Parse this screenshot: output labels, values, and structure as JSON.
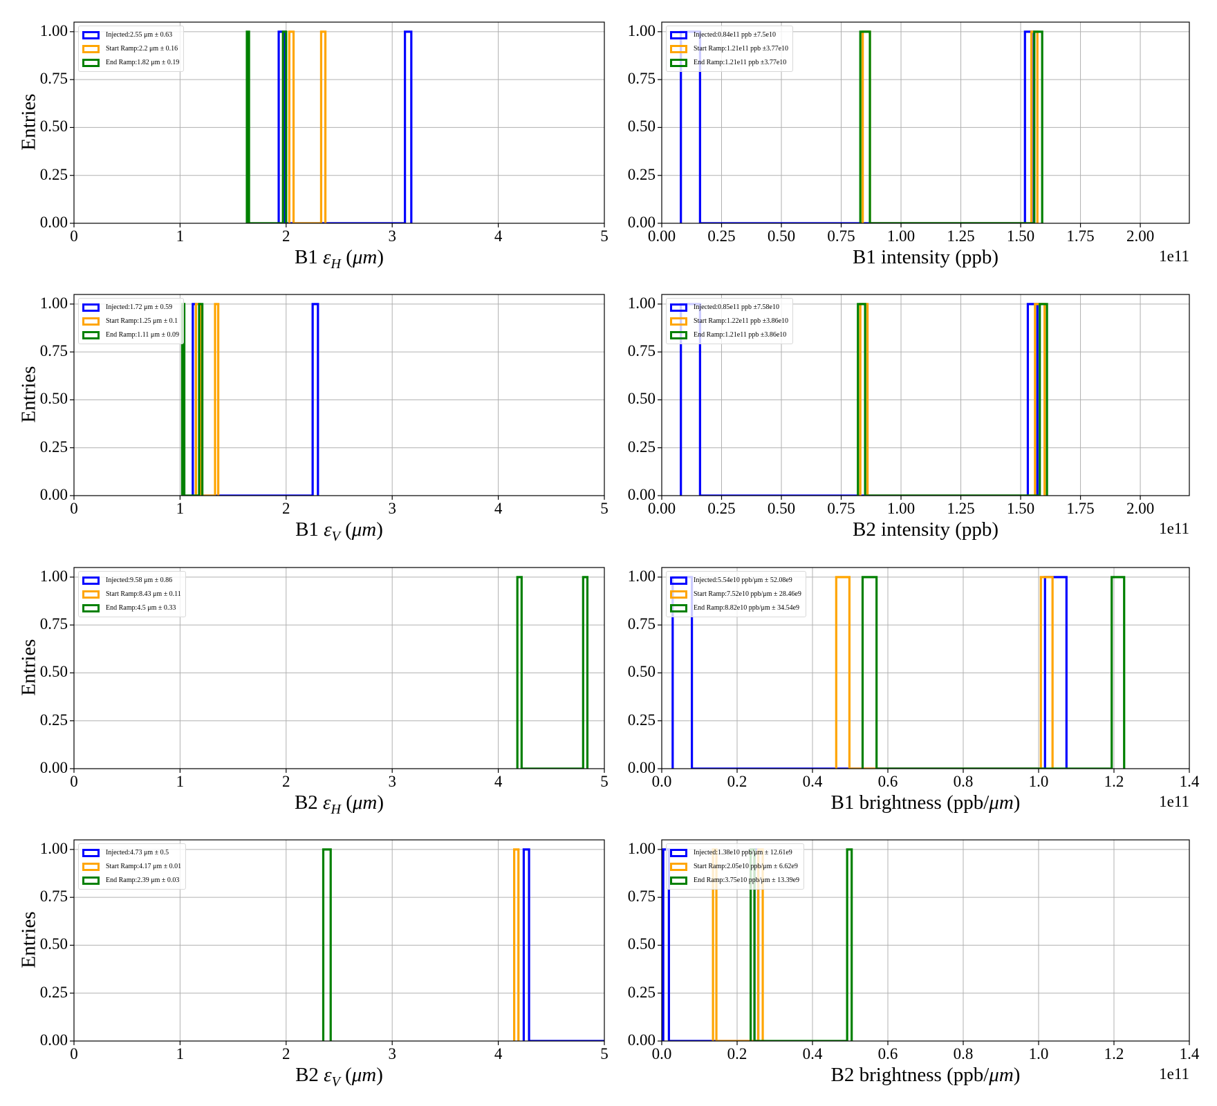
{
  "chart_data": [
    {
      "type": "histogram",
      "xlabel": {
        "pre": "B1 ",
        "sym": "ε",
        "sub": "H",
        "post": " (",
        "unit": "μm",
        "end": ")"
      },
      "ylabel": "Entries",
      "xlim": [
        0,
        5
      ],
      "ylim": [
        0,
        1.05
      ],
      "xticks": [
        "0",
        "1",
        "2",
        "3",
        "4",
        "5"
      ],
      "xtick_values": [
        0,
        1,
        2,
        3,
        4,
        5
      ],
      "offset": "",
      "series": [
        {
          "name": "Injected",
          "legend": "Injected:2.55 μm ± 0.63",
          "color": "#0000ff",
          "range": [
            1.93,
            3.18
          ],
          "bars": [
            [
              1.93,
              1.99,
              1
            ],
            [
              3.12,
              3.18,
              1
            ]
          ]
        },
        {
          "name": "Start Ramp",
          "legend": "Start Ramp:2.2 μm ± 0.16",
          "color": "#ffa500",
          "range": [
            2.03,
            2.37
          ],
          "bars": [
            [
              2.03,
              2.07,
              1
            ],
            [
              2.33,
              2.37,
              1
            ]
          ]
        },
        {
          "name": "End Ramp",
          "legend": "End Ramp:1.82 μm ± 0.19",
          "color": "#008000",
          "range": [
            1.63,
            2.0
          ],
          "bars": [
            [
              1.63,
              1.65,
              1
            ],
            [
              1.97,
              2.0,
              1
            ]
          ]
        }
      ]
    },
    {
      "type": "histogram",
      "xlabel": {
        "pre": "B1 intensity (ppb)"
      },
      "ylabel": "",
      "xlim": [
        0,
        2.205
      ],
      "ylim": [
        0,
        1.05
      ],
      "xticks": [
        "0.00",
        "0.25",
        "0.50",
        "0.75",
        "1.00",
        "1.25",
        "1.50",
        "1.75",
        "2.00"
      ],
      "xtick_values": [
        0,
        0.25,
        0.5,
        0.75,
        1,
        1.25,
        1.5,
        1.75,
        2
      ],
      "offset": "1e11",
      "series": [
        {
          "name": "Injected",
          "legend": "Injected:0.84e11 ppb ±7.5e10",
          "color": "#0000ff",
          "range": [
            0.08,
            1.555
          ],
          "bars": [
            [
              0.08,
              0.16,
              1
            ],
            [
              1.518,
              1.555,
              1
            ]
          ]
        },
        {
          "name": "Start Ramp",
          "legend": "Start Ramp:1.21e11 ppb ±3.77e10",
          "color": "#ffa500",
          "range": [
            0.84,
            1.57
          ],
          "bars": [
            [
              0.84,
              0.87,
              1
            ],
            [
              1.545,
              1.57,
              1
            ]
          ]
        },
        {
          "name": "End Ramp",
          "legend": "End Ramp:1.21e11 ppb ±3.77e10",
          "color": "#008000",
          "range": [
            0.83,
            1.59
          ],
          "bars": [
            [
              0.83,
              0.87,
              1
            ],
            [
              1.557,
              1.59,
              1
            ]
          ]
        }
      ]
    },
    {
      "type": "histogram",
      "xlabel": {
        "pre": "B1 ",
        "sym": "ε",
        "sub": "V",
        "post": " (",
        "unit": "μm",
        "end": ")"
      },
      "ylabel": "Entries",
      "xlim": [
        0,
        5
      ],
      "ylim": [
        0,
        1.05
      ],
      "xticks": [
        "0",
        "1",
        "2",
        "3",
        "4",
        "5"
      ],
      "xtick_values": [
        0,
        1,
        2,
        3,
        4,
        5
      ],
      "offset": "",
      "series": [
        {
          "name": "Injected",
          "legend": "Injected:1.72 μm ± 0.59",
          "color": "#0000ff",
          "range": [
            1.12,
            2.3
          ],
          "bars": [
            [
              1.12,
              1.15,
              1
            ],
            [
              2.25,
              2.3,
              1
            ]
          ]
        },
        {
          "name": "Start Ramp",
          "legend": "Start Ramp:1.25 μm ± 0.1",
          "color": "#ffa500",
          "range": [
            1.15,
            1.36
          ],
          "bars": [
            [
              1.15,
              1.19,
              1
            ],
            [
              1.33,
              1.36,
              1
            ]
          ]
        },
        {
          "name": "End Ramp",
          "legend": "End Ramp:1.11 μm ± 0.09",
          "color": "#008000",
          "range": [
            1.02,
            1.21
          ],
          "bars": [
            [
              1.02,
              1.04,
              1
            ],
            [
              1.18,
              1.21,
              1
            ]
          ]
        }
      ]
    },
    {
      "type": "histogram",
      "xlabel": {
        "pre": "B2 intensity (ppb)"
      },
      "ylabel": "",
      "xlim": [
        0,
        2.205
      ],
      "ylim": [
        0,
        1.05
      ],
      "xticks": [
        "0.00",
        "0.25",
        "0.50",
        "0.75",
        "1.00",
        "1.25",
        "1.50",
        "1.75",
        "2.00"
      ],
      "xtick_values": [
        0,
        0.25,
        0.5,
        0.75,
        1,
        1.25,
        1.5,
        1.75,
        2
      ],
      "offset": "1e11",
      "series": [
        {
          "name": "Injected",
          "legend": "Injected:0.85e11 ppb ±7.58e10",
          "color": "#0000ff",
          "range": [
            0.08,
            1.57
          ],
          "bars": [
            [
              0.08,
              0.16,
              1
            ],
            [
              1.53,
              1.57,
              1
            ]
          ]
        },
        {
          "name": "Start Ramp",
          "legend": "Start Ramp:1.22e11 ppb ±3.86e10",
          "color": "#ffa500",
          "range": [
            0.83,
            1.6
          ],
          "bars": [
            [
              0.83,
              0.86,
              1
            ],
            [
              1.56,
              1.6,
              1
            ]
          ]
        },
        {
          "name": "End Ramp",
          "legend": "End Ramp:1.21e11 ppb ±3.86e10",
          "color": "#008000",
          "range": [
            0.82,
            1.61
          ],
          "bars": [
            [
              0.82,
              0.85,
              1
            ],
            [
              1.58,
              1.61,
              1
            ]
          ]
        }
      ]
    },
    {
      "type": "histogram",
      "xlabel": {
        "pre": "B2 ",
        "sym": "ε",
        "sub": "H",
        "post": " (",
        "unit": "μm",
        "end": ")"
      },
      "ylabel": "Entries",
      "xlim": [
        0,
        5
      ],
      "ylim": [
        0,
        1.05
      ],
      "xticks": [
        "0",
        "1",
        "2",
        "3",
        "4",
        "5"
      ],
      "xtick_values": [
        0,
        1,
        2,
        3,
        4,
        5
      ],
      "offset": "",
      "series": [
        {
          "name": "Injected",
          "legend": "Injected:9.58 μm ± 0.86",
          "color": "#0000ff",
          "range": [],
          "bars": []
        },
        {
          "name": "Start Ramp",
          "legend": "Start Ramp:8.43 μm ± 0.11",
          "color": "#ffa500",
          "range": [],
          "bars": []
        },
        {
          "name": "End Ramp",
          "legend": "End Ramp:4.5 μm ± 0.33",
          "color": "#008000",
          "range": [
            4.18,
            4.84
          ],
          "bars": [
            [
              4.18,
              4.22,
              1
            ],
            [
              4.8,
              4.84,
              1
            ]
          ]
        }
      ]
    },
    {
      "type": "histogram",
      "xlabel": {
        "pre": "B1 brightness (ppb/",
        "unit": "μm",
        "end": ")"
      },
      "ylabel": "",
      "xlim": [
        0,
        1.4
      ],
      "ylim": [
        0,
        1.05
      ],
      "xticks": [
        "0.0",
        "0.2",
        "0.4",
        "0.6",
        "0.8",
        "1.0",
        "1.2",
        "1.4"
      ],
      "xtick_values": [
        0,
        0.2,
        0.4,
        0.6,
        0.8,
        1,
        1.2,
        1.4
      ],
      "offset": "1e11",
      "series": [
        {
          "name": "Injected",
          "legend": "Injected:5.54e10 ppb/μm ± 52.08e9",
          "color": "#0000ff",
          "range": [
            0.029,
            1.074
          ],
          "bars": [
            [
              0.029,
              0.08,
              1
            ],
            [
              1.017,
              1.074,
              1
            ]
          ]
        },
        {
          "name": "Start Ramp",
          "legend": "Start Ramp:7.52e10 ppb/μm ± 28.46e9",
          "color": "#ffa500",
          "range": [
            0.463,
            1.037
          ],
          "bars": [
            [
              0.463,
              0.498,
              1
            ],
            [
              1.006,
              1.037,
              1
            ]
          ]
        },
        {
          "name": "End Ramp",
          "legend": "End Ramp:8.82e10 ppb/μm ± 34.54e9",
          "color": "#008000",
          "range": [
            0.533,
            1.227
          ],
          "bars": [
            [
              0.533,
              0.57,
              1
            ],
            [
              1.194,
              1.227,
              1
            ]
          ]
        }
      ]
    },
    {
      "type": "histogram",
      "xlabel": {
        "pre": "B2 ",
        "sym": "ε",
        "sub": "V",
        "post": " (",
        "unit": "μm",
        "end": ")"
      },
      "ylabel": "Entries",
      "xlim": [
        0,
        5
      ],
      "ylim": [
        0,
        1.05
      ],
      "xticks": [
        "0",
        "1",
        "2",
        "3",
        "4",
        "5"
      ],
      "xtick_values": [
        0,
        1,
        2,
        3,
        4,
        5
      ],
      "offset": "",
      "series": [
        {
          "name": "Injected",
          "legend": "Injected:4.73 μm ± 0.5",
          "color": "#0000ff",
          "range": [
            4.24,
            5.3
          ],
          "bars": [
            [
              4.24,
              4.29,
              1
            ]
          ]
        },
        {
          "name": "Start Ramp",
          "legend": "Start Ramp:4.17 μm ± 0.01",
          "color": "#ffa500",
          "range": [
            4.15,
            4.19
          ],
          "bars": [
            [
              4.15,
              4.19,
              1
            ]
          ]
        },
        {
          "name": "End Ramp",
          "legend": "End Ramp:2.39 μm ± 0.03",
          "color": "#008000",
          "range": [
            2.35,
            2.42
          ],
          "bars": [
            [
              2.35,
              2.42,
              1
            ]
          ]
        }
      ]
    },
    {
      "type": "histogram",
      "xlabel": {
        "pre": "B2 brightness (ppb/",
        "unit": "μm",
        "end": ")"
      },
      "ylabel": "",
      "xlim": [
        0,
        1.4
      ],
      "ylim": [
        0,
        1.05
      ],
      "xticks": [
        "0.0",
        "0.2",
        "0.4",
        "0.6",
        "0.8",
        "1.0",
        "1.2",
        "1.4"
      ],
      "xtick_values": [
        0,
        0.2,
        0.4,
        0.6,
        0.8,
        1,
        1.2,
        1.4
      ],
      "offset": "1e11",
      "series": [
        {
          "name": "Injected",
          "legend": "Injected:1.38e10 ppb/μm ± 12.61e9",
          "color": "#0000ff",
          "range": [
            0.004,
            0.256
          ],
          "bars": [
            [
              0.004,
              0.019,
              1
            ],
            [
              0.246,
              0.256,
              1
            ]
          ]
        },
        {
          "name": "Start Ramp",
          "legend": "Start Ramp:2.05e10 ppb/μm ± 6.62e9",
          "color": "#ffa500",
          "range": [
            0.136,
            0.268
          ],
          "bars": [
            [
              0.136,
              0.145,
              1
            ],
            [
              0.256,
              0.268,
              1
            ]
          ]
        },
        {
          "name": "End Ramp",
          "legend": "End Ramp:3.75e10 ppb/μm ± 13.39e9",
          "color": "#008000",
          "range": [
            0.236,
            0.504
          ],
          "bars": [
            [
              0.236,
              0.246,
              1
            ],
            [
              0.492,
              0.504,
              1
            ]
          ]
        }
      ]
    }
  ],
  "yticks": [
    "0.00",
    "0.25",
    "0.50",
    "0.75",
    "1.00"
  ],
  "ytick_values": [
    0,
    0.25,
    0.5,
    0.75,
    1.0
  ]
}
